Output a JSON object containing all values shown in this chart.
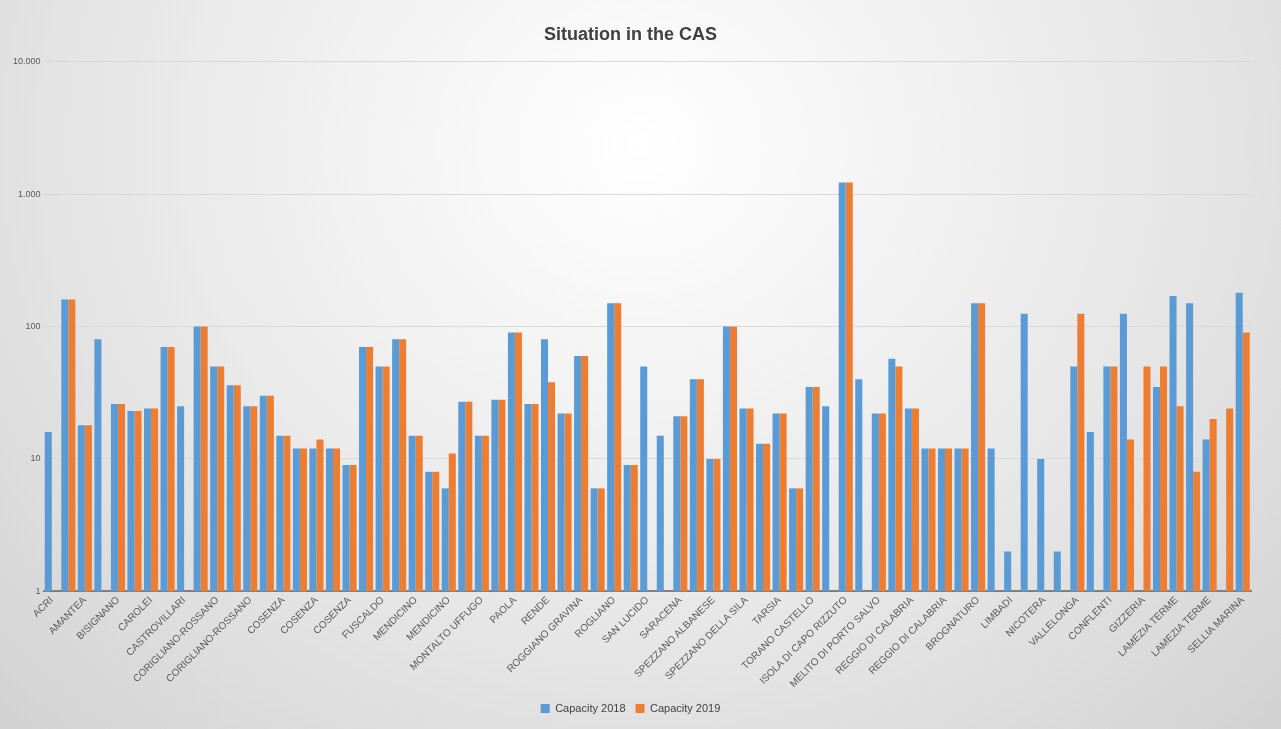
{
  "chart_data": {
    "type": "bar",
    "title": "Situation in the CAS",
    "categories": [
      "ACRI",
      null,
      "AMANTEA",
      null,
      "BISIGNANO",
      null,
      "CAROLEI",
      null,
      "CASTROVILLARI",
      null,
      "CORIGLIANO-ROSSANO",
      null,
      "CORIGLIANO-ROSSANO",
      null,
      "COSENZA",
      null,
      "COSENZA",
      null,
      "COSENZA",
      null,
      "FUSCALDO",
      null,
      "MENDICINO",
      null,
      "MENDICINO",
      null,
      "MONTALTO UFFUGO",
      null,
      "PAOLA",
      null,
      "RENDE",
      null,
      "ROGGIANO GRAVINA",
      null,
      "ROGLIANO",
      null,
      "SAN LUCIDO",
      null,
      "SARACENA",
      null,
      "SPEZZANO ALBANESE",
      null,
      "SPEZZANO DELLA SILA",
      null,
      "TARSIA",
      null,
      "TORANO CASTELLO",
      null,
      "ISOLA DI CAPO RIZZUTO",
      null,
      "MELITO DI PORTO SALVO",
      null,
      "REGGIO DI CALABRIA",
      null,
      "REGGIO DI CALABRIA",
      null,
      "BROGNATURO",
      null,
      "LIMBADI",
      null,
      "NICOTERA",
      null,
      "VALLELONGA",
      null,
      "CONFLENTI",
      null,
      "GIZZERIA",
      null,
      "LAMEZIA TERME",
      null,
      "LAMEZIA TERME",
      null,
      "SELLIA MARINA"
    ],
    "series": [
      {
        "name": "Capacity 2018",
        "color": "#5b9bd5",
        "values": [
          16,
          160,
          18,
          80,
          26,
          23,
          24,
          70,
          25,
          100,
          50,
          36,
          25,
          30,
          15,
          12,
          12,
          12,
          9,
          70,
          50,
          80,
          15,
          8,
          6,
          27,
          15,
          28,
          90,
          26,
          80,
          22,
          60,
          6,
          150,
          9,
          50,
          15,
          21,
          40,
          10,
          100,
          24,
          13,
          22,
          6,
          35,
          25,
          1220,
          40,
          22,
          57,
          24,
          12,
          12,
          12,
          150,
          12,
          2,
          125,
          10,
          2,
          50,
          16,
          50,
          125,
          1,
          35,
          170,
          150,
          14,
          1,
          180
        ]
      },
      {
        "name": "Capacity 2019",
        "color": "#ed7d31",
        "values": [
          1,
          160,
          18,
          1,
          26,
          23,
          24,
          70,
          1,
          100,
          50,
          36,
          25,
          30,
          15,
          12,
          14,
          12,
          9,
          70,
          50,
          80,
          15,
          8,
          11,
          27,
          15,
          28,
          90,
          26,
          38,
          22,
          60,
          6,
          150,
          9,
          1,
          1,
          21,
          40,
          10,
          100,
          24,
          13,
          22,
          6,
          35,
          1,
          1220,
          1,
          22,
          50,
          24,
          12,
          12,
          12,
          150,
          1,
          1,
          1,
          1,
          1,
          125,
          1,
          50,
          14,
          50,
          50,
          25,
          8,
          20,
          24,
          90
        ]
      }
    ],
    "log": "y",
    "ylim": [
      1,
      10000
    ],
    "yticks": [
      1,
      10,
      100,
      {
        "value": 1000,
        "label": "1.000"
      },
      {
        "value": 10000,
        "label": "10.000"
      }
    ],
    "grid": "y",
    "legend": "bottom"
  }
}
